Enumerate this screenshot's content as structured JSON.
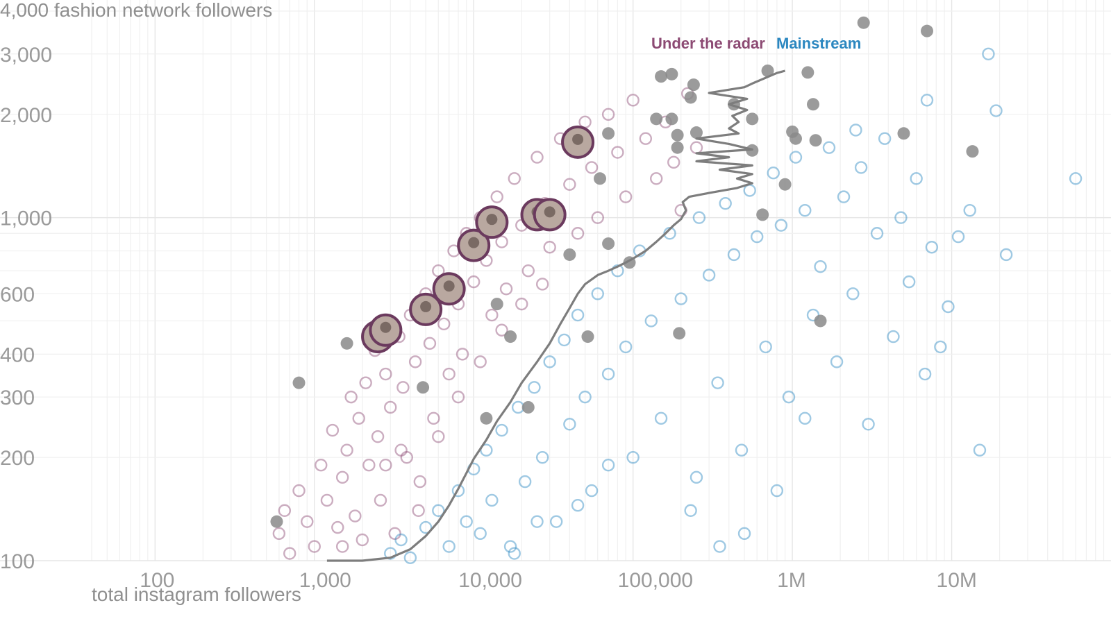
{
  "chart_data": {
    "type": "scatter",
    "title": "",
    "xlabel": "total instagram followers",
    "ylabel": "4,000 fashion network followers",
    "xscale": "log",
    "yscale": "log",
    "xlim": [
      40,
      100000000
    ],
    "ylim": [
      100,
      4000
    ],
    "grid": true,
    "legend_placement": "top-center",
    "x_ticks": [
      {
        "value": 100,
        "label": "100"
      },
      {
        "value": 1000,
        "label": "1,000"
      },
      {
        "value": 10000,
        "label": "10,000"
      },
      {
        "value": 100000,
        "label": "100,000"
      },
      {
        "value": 1000000,
        "label": "1M"
      },
      {
        "value": 10000000,
        "label": "10M"
      }
    ],
    "y_ticks": [
      {
        "value": 100,
        "label": "100"
      },
      {
        "value": 200,
        "label": "200"
      },
      {
        "value": 300,
        "label": "300"
      },
      {
        "value": 400,
        "label": "400"
      },
      {
        "value": 600,
        "label": "600"
      },
      {
        "value": 1000,
        "label": "1,000"
      },
      {
        "value": 2000,
        "label": "2,000"
      },
      {
        "value": 3000,
        "label": "3,000"
      }
    ],
    "legend": [
      {
        "label": "Under the radar",
        "color": "#8c4a73"
      },
      {
        "label": "Mainstream",
        "color": "#2b87c0"
      }
    ],
    "series": [
      {
        "name": "Under the radar",
        "color": "#8c4a73",
        "marker": "hollow-circle",
        "points": [
          [
            600,
            120
          ],
          [
            650,
            140
          ],
          [
            700,
            105
          ],
          [
            800,
            160
          ],
          [
            900,
            130
          ],
          [
            1000,
            110
          ],
          [
            1100,
            190
          ],
          [
            1200,
            150
          ],
          [
            1300,
            240
          ],
          [
            1400,
            125
          ],
          [
            1500,
            175
          ],
          [
            1600,
            210
          ],
          [
            1700,
            300
          ],
          [
            1800,
            135
          ],
          [
            1900,
            260
          ],
          [
            2000,
            115
          ],
          [
            2100,
            330
          ],
          [
            2200,
            190
          ],
          [
            2400,
            410
          ],
          [
            2500,
            230
          ],
          [
            2600,
            150
          ],
          [
            2800,
            350
          ],
          [
            3000,
            280
          ],
          [
            3200,
            120
          ],
          [
            3400,
            450
          ],
          [
            3600,
            320
          ],
          [
            3800,
            200
          ],
          [
            4000,
            520
          ],
          [
            4300,
            380
          ],
          [
            4600,
            170
          ],
          [
            5000,
            600
          ],
          [
            5300,
            430
          ],
          [
            5600,
            260
          ],
          [
            6000,
            700
          ],
          [
            6500,
            490
          ],
          [
            7000,
            350
          ],
          [
            7500,
            800
          ],
          [
            8000,
            560
          ],
          [
            8500,
            400
          ],
          [
            9000,
            900
          ],
          [
            10000,
            650
          ],
          [
            11000,
            1000
          ],
          [
            12000,
            750
          ],
          [
            13000,
            520
          ],
          [
            14000,
            1150
          ],
          [
            15000,
            850
          ],
          [
            16000,
            620
          ],
          [
            18000,
            1300
          ],
          [
            20000,
            950
          ],
          [
            22000,
            700
          ],
          [
            25000,
            1500
          ],
          [
            28000,
            1100
          ],
          [
            30000,
            820
          ],
          [
            35000,
            1700
          ],
          [
            40000,
            1250
          ],
          [
            45000,
            900
          ],
          [
            50000,
            1900
          ],
          [
            55000,
            1400
          ],
          [
            60000,
            1000
          ],
          [
            70000,
            2000
          ],
          [
            80000,
            1550
          ],
          [
            90000,
            1150
          ],
          [
            100000,
            2200
          ],
          [
            120000,
            1700
          ],
          [
            140000,
            1300
          ],
          [
            160000,
            1900
          ],
          [
            180000,
            1450
          ],
          [
            200000,
            1050
          ],
          [
            220000,
            2300
          ],
          [
            250000,
            1600
          ],
          [
            3500,
            210
          ],
          [
            2800,
            190
          ],
          [
            1500,
            110
          ],
          [
            4500,
            140
          ],
          [
            6000,
            230
          ],
          [
            8000,
            300
          ],
          [
            11000,
            380
          ],
          [
            15000,
            470
          ],
          [
            20000,
            560
          ],
          [
            27000,
            640
          ]
        ]
      },
      {
        "name": "Mainstream",
        "color": "#2b87c0",
        "marker": "hollow-circle",
        "points": [
          [
            3000,
            105
          ],
          [
            3500,
            115
          ],
          [
            4000,
            102
          ],
          [
            5000,
            125
          ],
          [
            6000,
            140
          ],
          [
            7000,
            110
          ],
          [
            8000,
            160
          ],
          [
            9000,
            130
          ],
          [
            10000,
            185
          ],
          [
            11000,
            120
          ],
          [
            12000,
            210
          ],
          [
            13000,
            150
          ],
          [
            15000,
            240
          ],
          [
            17000,
            110
          ],
          [
            19000,
            280
          ],
          [
            21000,
            170
          ],
          [
            24000,
            320
          ],
          [
            27000,
            200
          ],
          [
            30000,
            380
          ],
          [
            33000,
            130
          ],
          [
            37000,
            440
          ],
          [
            40000,
            250
          ],
          [
            45000,
            520
          ],
          [
            50000,
            300
          ],
          [
            55000,
            160
          ],
          [
            60000,
            600
          ],
          [
            70000,
            350
          ],
          [
            80000,
            700
          ],
          [
            90000,
            420
          ],
          [
            100000,
            200
          ],
          [
            110000,
            800
          ],
          [
            130000,
            500
          ],
          [
            150000,
            260
          ],
          [
            170000,
            900
          ],
          [
            200000,
            580
          ],
          [
            230000,
            140
          ],
          [
            260000,
            1000
          ],
          [
            300000,
            680
          ],
          [
            340000,
            330
          ],
          [
            380000,
            1100
          ],
          [
            430000,
            780
          ],
          [
            480000,
            210
          ],
          [
            540000,
            1200
          ],
          [
            600000,
            880
          ],
          [
            680000,
            420
          ],
          [
            760000,
            1350
          ],
          [
            850000,
            950
          ],
          [
            950000,
            300
          ],
          [
            1050000,
            1500
          ],
          [
            1200000,
            1050
          ],
          [
            1350000,
            520
          ],
          [
            1500000,
            720
          ],
          [
            1700000,
            1600
          ],
          [
            1900000,
            380
          ],
          [
            2100000,
            1150
          ],
          [
            2400000,
            600
          ],
          [
            2700000,
            1400
          ],
          [
            3000000,
            250
          ],
          [
            3400000,
            900
          ],
          [
            3800000,
            1700
          ],
          [
            4300000,
            450
          ],
          [
            4800000,
            1000
          ],
          [
            5400000,
            650
          ],
          [
            6000000,
            1300
          ],
          [
            6800000,
            350
          ],
          [
            7500000,
            820
          ],
          [
            8500000,
            420
          ],
          [
            9500000,
            550
          ],
          [
            11000000,
            880
          ],
          [
            13000000,
            1050
          ],
          [
            15000000,
            210
          ],
          [
            17000000,
            3000
          ],
          [
            19000000,
            2050
          ],
          [
            22000000,
            780
          ],
          [
            60000000,
            1300
          ],
          [
            7000000,
            2200
          ],
          [
            2500000,
            1800
          ],
          [
            1200000,
            260
          ],
          [
            800000,
            160
          ],
          [
            500000,
            120
          ],
          [
            350000,
            110
          ],
          [
            250000,
            175
          ],
          [
            18000,
            105
          ],
          [
            25000,
            130
          ],
          [
            45000,
            145
          ],
          [
            70000,
            190
          ]
        ]
      },
      {
        "name": "",
        "color": "#8a8a8a",
        "marker": "filled-circle",
        "points": [
          [
            580,
            130
          ],
          [
            800,
            330
          ],
          [
            1600,
            430
          ],
          [
            4800,
            320
          ],
          [
            11000,
            800
          ],
          [
            12000,
            260
          ],
          [
            14000,
            560
          ],
          [
            17000,
            450
          ],
          [
            22000,
            280
          ],
          [
            40000,
            780
          ],
          [
            52000,
            450
          ],
          [
            62000,
            1300
          ],
          [
            70000,
            840
          ],
          [
            70000,
            1760
          ],
          [
            95000,
            740
          ],
          [
            140000,
            1940
          ],
          [
            150000,
            2580
          ],
          [
            175000,
            1940
          ],
          [
            175000,
            2620
          ],
          [
            190000,
            1740
          ],
          [
            190000,
            1600
          ],
          [
            195000,
            460
          ],
          [
            250000,
            1770
          ],
          [
            230000,
            2240
          ],
          [
            240000,
            2440
          ],
          [
            430000,
            2140
          ],
          [
            560000,
            1570
          ],
          [
            560000,
            1940
          ],
          [
            650000,
            1020
          ],
          [
            700000,
            2680
          ],
          [
            900000,
            1250
          ],
          [
            1050000,
            1700
          ],
          [
            1000000,
            1780
          ],
          [
            1250000,
            2650
          ],
          [
            1350000,
            2140
          ],
          [
            1400000,
            1680
          ],
          [
            1500000,
            500
          ],
          [
            2800000,
            3700
          ],
          [
            5000000,
            1760
          ],
          [
            7000000,
            3500
          ],
          [
            13500000,
            1560
          ]
        ]
      }
    ],
    "median_line": {
      "color": "#7d7d7d",
      "points": [
        [
          1200,
          100
        ],
        [
          2000,
          100
        ],
        [
          3000,
          102
        ],
        [
          4000,
          108
        ],
        [
          5000,
          118
        ],
        [
          6000,
          130
        ],
        [
          7000,
          145
        ],
        [
          8000,
          162
        ],
        [
          9000,
          180
        ],
        [
          10000,
          198
        ],
        [
          12000,
          225
        ],
        [
          14000,
          255
        ],
        [
          17000,
          290
        ],
        [
          20000,
          330
        ],
        [
          25000,
          380
        ],
        [
          30000,
          430
        ],
        [
          35000,
          490
        ],
        [
          40000,
          545
        ],
        [
          45000,
          600
        ],
        [
          50000,
          640
        ],
        [
          60000,
          680
        ],
        [
          70000,
          700
        ],
        [
          80000,
          720
        ],
        [
          90000,
          740
        ],
        [
          100000,
          760
        ],
        [
          120000,
          800
        ],
        [
          140000,
          850
        ],
        [
          160000,
          900
        ],
        [
          180000,
          950
        ],
        [
          200000,
          990
        ],
        [
          215000,
          1050
        ],
        [
          205000,
          1110
        ],
        [
          225000,
          1150
        ],
        [
          300000,
          1180
        ],
        [
          450000,
          1220
        ],
        [
          560000,
          1260
        ],
        [
          450000,
          1300
        ],
        [
          560000,
          1340
        ],
        [
          350000,
          1380
        ],
        [
          560000,
          1420
        ],
        [
          250000,
          1460
        ],
        [
          400000,
          1500
        ],
        [
          250000,
          1540
        ],
        [
          560000,
          1580
        ],
        [
          400000,
          1640
        ],
        [
          250000,
          1700
        ],
        [
          460000,
          1760
        ],
        [
          400000,
          1820
        ],
        [
          460000,
          1900
        ],
        [
          420000,
          1980
        ],
        [
          520000,
          2060
        ],
        [
          400000,
          2140
        ],
        [
          520000,
          2220
        ],
        [
          300000,
          2310
        ],
        [
          500000,
          2400
        ],
        [
          560000,
          2460
        ],
        [
          800000,
          2640
        ],
        [
          900000,
          2680
        ]
      ]
    },
    "highlighted_accounts": [
      {
        "x": 2500,
        "y": 450,
        "ring": "#6b3a5e"
      },
      {
        "x": 2800,
        "y": 470,
        "ring": "#6b3a5e"
      },
      {
        "x": 5000,
        "y": 540,
        "ring": "#6b3a5e"
      },
      {
        "x": 7000,
        "y": 620,
        "ring": "#6b3a5e"
      },
      {
        "x": 10000,
        "y": 830,
        "ring": "#6b3a5e"
      },
      {
        "x": 13000,
        "y": 970,
        "ring": "#6b3a5e"
      },
      {
        "x": 25000,
        "y": 1020,
        "ring": "#6b3a5e"
      },
      {
        "x": 30000,
        "y": 1020,
        "ring": "#6b3a5e"
      },
      {
        "x": 45000,
        "y": 1660,
        "ring": "#6b3a5e"
      }
    ]
  }
}
